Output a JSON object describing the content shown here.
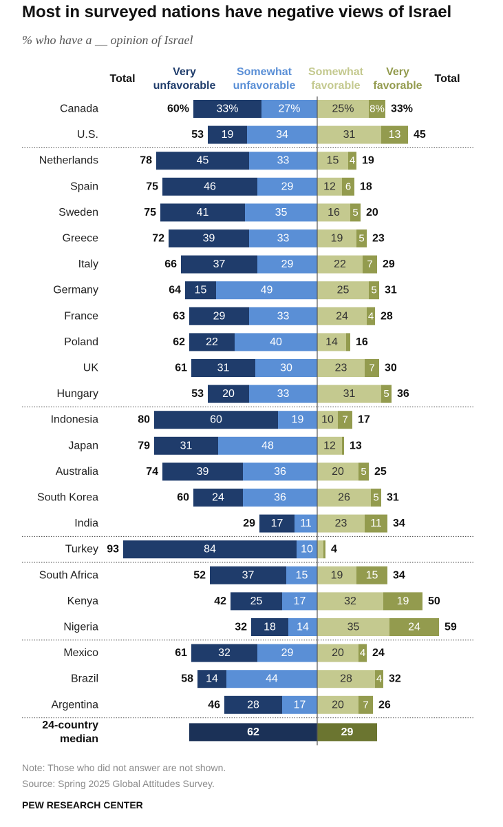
{
  "title": "Most in surveyed nations have negative views of Israel",
  "subtitle": "% who have a __ opinion of Israel",
  "headers": {
    "total_left": "Total",
    "very_unfavorable": [
      "Very",
      "unfavorable"
    ],
    "somewhat_unfavorable": [
      "Somewhat",
      "unfavorable"
    ],
    "somewhat_favorable": [
      "Somewhat",
      "favorable"
    ],
    "very_favorable": [
      "Very",
      "favorable"
    ],
    "total_right": "Total"
  },
  "colors": {
    "very_unfavorable": "#1f3c6b",
    "somewhat_unfavorable": "#5a8fd6",
    "somewhat_favorable": "#c4c98f",
    "very_favorable": "#939b4e",
    "median_unfavorable": "#1b3157",
    "median_favorable": "#6b7530"
  },
  "chart_data": {
    "type": "bar",
    "orientation": "horizontal-diverging",
    "series_names": [
      "Very unfavorable",
      "Somewhat unfavorable",
      "Somewhat favorable",
      "Very favorable"
    ],
    "categories": [
      "Canada",
      "U.S.",
      "Netherlands",
      "Spain",
      "Sweden",
      "Greece",
      "Italy",
      "Germany",
      "France",
      "Poland",
      "UK",
      "Hungary",
      "Indonesia",
      "Japan",
      "Australia",
      "South Korea",
      "India",
      "Turkey",
      "South Africa",
      "Kenya",
      "Nigeria",
      "Mexico",
      "Brazil",
      "Argentina"
    ],
    "rows": [
      {
        "label": "Canada",
        "vu": 33,
        "su": 27,
        "sf": 25,
        "vf": 8,
        "tu": 60,
        "tf": 33,
        "pct": true
      },
      {
        "label": "U.S.",
        "vu": 19,
        "su": 34,
        "sf": 31,
        "vf": 13,
        "tu": 53,
        "tf": 45,
        "sep": true
      },
      {
        "label": "Netherlands",
        "vu": 45,
        "su": 33,
        "sf": 15,
        "vf": 4,
        "tu": 78,
        "tf": 19
      },
      {
        "label": "Spain",
        "vu": 46,
        "su": 29,
        "sf": 12,
        "vf": 6,
        "tu": 75,
        "tf": 18
      },
      {
        "label": "Sweden",
        "vu": 41,
        "su": 35,
        "sf": 16,
        "vf": 5,
        "tu": 75,
        "tf": 20
      },
      {
        "label": "Greece",
        "vu": 39,
        "su": 33,
        "sf": 19,
        "vf": 5,
        "tu": 72,
        "tf": 23
      },
      {
        "label": "Italy",
        "vu": 37,
        "su": 29,
        "sf": 22,
        "vf": 7,
        "tu": 66,
        "tf": 29
      },
      {
        "label": "Germany",
        "vu": 15,
        "su": 49,
        "sf": 25,
        "vf": 5,
        "tu": 64,
        "tf": 31
      },
      {
        "label": "France",
        "vu": 29,
        "su": 33,
        "sf": 24,
        "vf": 4,
        "tu": 63,
        "tf": 28
      },
      {
        "label": "Poland",
        "vu": 22,
        "su": 40,
        "sf": 14,
        "vf": 2,
        "tu": 62,
        "tf": 16,
        "hide_vf": true
      },
      {
        "label": "UK",
        "vu": 31,
        "su": 30,
        "sf": 23,
        "vf": 7,
        "tu": 61,
        "tf": 30
      },
      {
        "label": "Hungary",
        "vu": 20,
        "su": 33,
        "sf": 31,
        "vf": 5,
        "tu": 53,
        "tf": 36,
        "sep": true
      },
      {
        "label": "Indonesia",
        "vu": 60,
        "su": 19,
        "sf": 10,
        "vf": 7,
        "tu": 80,
        "tf": 17
      },
      {
        "label": "Japan",
        "vu": 31,
        "su": 48,
        "sf": 12,
        "vf": 1,
        "tu": 79,
        "tf": 13,
        "hide_vf": true
      },
      {
        "label": "Australia",
        "vu": 39,
        "su": 36,
        "sf": 20,
        "vf": 5,
        "tu": 74,
        "tf": 25
      },
      {
        "label": "South Korea",
        "vu": 24,
        "su": 36,
        "sf": 26,
        "vf": 5,
        "tu": 60,
        "tf": 31
      },
      {
        "label": "India",
        "vu": 17,
        "su": 11,
        "sf": 23,
        "vf": 11,
        "tu": 29,
        "tf": 34,
        "sep": true
      },
      {
        "label": "Turkey",
        "vu": 84,
        "su": 10,
        "sf": 3,
        "vf": 1,
        "tu": 93,
        "tf": 4,
        "hide_sf": true,
        "hide_vf": true,
        "sep": true
      },
      {
        "label": "South Africa",
        "vu": 37,
        "su": 15,
        "sf": 19,
        "vf": 15,
        "tu": 52,
        "tf": 34
      },
      {
        "label": "Kenya",
        "vu": 25,
        "su": 17,
        "sf": 32,
        "vf": 19,
        "tu": 42,
        "tf": 50
      },
      {
        "label": "Nigeria",
        "vu": 18,
        "su": 14,
        "sf": 35,
        "vf": 24,
        "tu": 32,
        "tf": 59,
        "sep": true
      },
      {
        "label": "Mexico",
        "vu": 32,
        "su": 29,
        "sf": 20,
        "vf": 4,
        "tu": 61,
        "tf": 24
      },
      {
        "label": "Brazil",
        "vu": 14,
        "su": 44,
        "sf": 28,
        "vf": 4,
        "tu": 58,
        "tf": 32
      },
      {
        "label": "Argentina",
        "vu": 28,
        "su": 17,
        "sf": 20,
        "vf": 7,
        "tu": 46,
        "tf": 26,
        "sep": true
      }
    ],
    "median": {
      "label": [
        "24-country",
        "median"
      ],
      "unfavorable": 62,
      "favorable": 29
    }
  },
  "notes": {
    "note": "Note: Those who did not answer are not shown.",
    "source": "Source: Spring 2025 Global Attitudes Survey.",
    "brand": "PEW RESEARCH CENTER"
  }
}
